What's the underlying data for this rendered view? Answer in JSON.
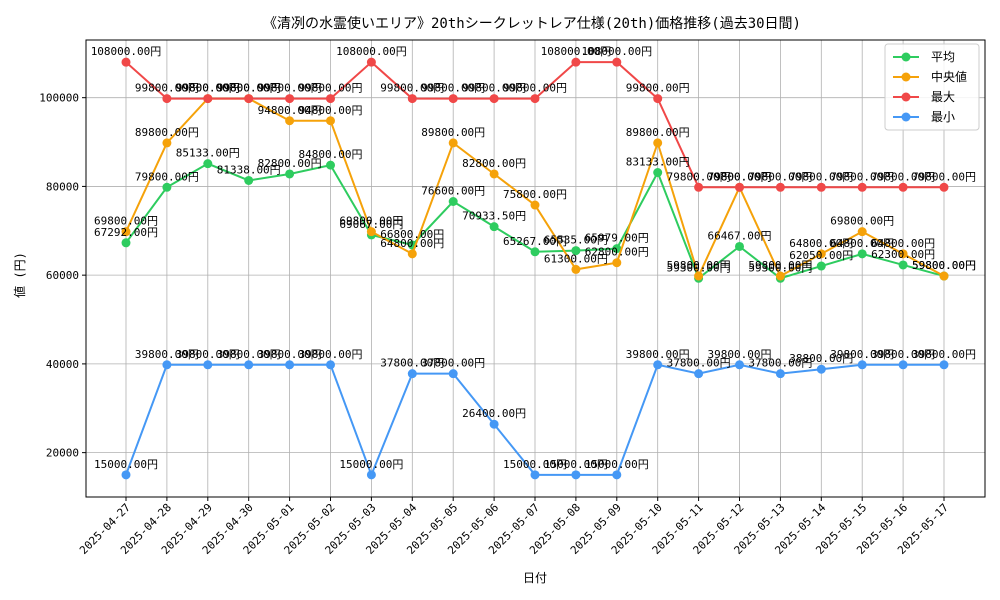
{
  "chart_data": {
    "type": "line",
    "title": "《清冽の水霊使いエリア》20thシークレットレア仕様(20th)価格推移(過去30日間)",
    "xlabel": "日付",
    "ylabel": "値 (円)",
    "ylim": [
      10000,
      113000
    ],
    "yticks": [
      20000,
      40000,
      60000,
      80000,
      100000
    ],
    "grid": true,
    "legend_position": "top-right",
    "categories": [
      "2025-04-27",
      "2025-04-28",
      "2025-04-29",
      "2025-04-30",
      "2025-05-01",
      "2025-05-02",
      "2025-05-03",
      "2025-05-04",
      "2025-05-05",
      "2025-05-06",
      "2025-05-07",
      "2025-05-08",
      "2025-05-09",
      "2025-05-10",
      "2025-05-11",
      "2025-05-12",
      "2025-05-13",
      "2025-05-14",
      "2025-05-15",
      "2025-05-16",
      "2025-05-17"
    ],
    "series": [
      {
        "name": "平均",
        "color": "#2ecc5f",
        "values": [
          67292,
          79800,
          85133,
          81338,
          82800,
          84800,
          69067,
          66800,
          76600,
          70933.5,
          65267,
          65535,
          65979,
          83133,
          59300,
          66467,
          59300,
          62050,
          64800,
          62300,
          59800
        ],
        "labels": [
          "67292.00円",
          "79800.00円",
          "85133.00円",
          "81338.00円",
          "82800.00円",
          "84800.00円",
          "69067.00円",
          "66800.00円",
          "76600.00円",
          "70933.50円",
          "65267.00円",
          "65535.00円",
          "65979.00円",
          "83133.00円",
          "59300.00円",
          "66467.00円",
          "59300.00円",
          "62050.00円",
          "64800.00円",
          "62300.00円",
          "59800.00円"
        ]
      },
      {
        "name": "中央値",
        "color": "#f5a20a",
        "values": [
          69800,
          89800,
          99800,
          99800,
          94800,
          94800,
          69800,
          64800,
          89800,
          82800,
          75800,
          61300,
          62800,
          89800,
          59800,
          79800,
          59800,
          64800,
          69800,
          64800,
          59800
        ],
        "labels": [
          "69800.00円",
          "89800.00円",
          "99800.00円",
          "99800.00円",
          "94800.00円",
          "94800.00円",
          "69800.00円",
          "64800.00円",
          "89800.00円",
          "82800.00円",
          "75800.00円",
          "61300.00円",
          "62800.00円",
          "89800.00円",
          "59800.00円",
          "79800.00円",
          "59800.00円",
          "64800.00円",
          "69800.00円",
          "64800.00円",
          "59800.00円"
        ]
      },
      {
        "name": "最大",
        "color": "#f04848",
        "values": [
          108000,
          99800,
          99800,
          99800,
          99800,
          99800,
          108000,
          99800,
          99800,
          99800,
          99800,
          108000,
          108000,
          99800,
          79800,
          79800,
          79800,
          79800,
          79800,
          79800,
          79800
        ],
        "labels": [
          "108000.00円",
          "99800.00円",
          "99800.00円",
          "99800.00円",
          "99800.00円",
          "99800.00円",
          "108000.00円",
          "99800.00円",
          "99800.00円",
          "99800.00円",
          "99800.00円",
          "108000.00円",
          "108000.00円",
          "99800.00円",
          "79800.00円",
          "79800.00円",
          "79800.00円",
          "79800.00円",
          "79800.00円",
          "79800.00円",
          "79800.00円"
        ]
      },
      {
        "name": "最小",
        "color": "#4598f5",
        "values": [
          15000,
          39800,
          39800,
          39800,
          39800,
          39800,
          15000,
          37800,
          37800,
          26400,
          15000,
          15000,
          15000,
          39800,
          37800,
          39800,
          37800,
          38800,
          39800,
          39800,
          39800
        ],
        "labels": [
          "15000.00円",
          "39800.00円",
          "39800.00円",
          "39800.00円",
          "39800.00円",
          "39800.00円",
          "15000.00円",
          "37800.00円",
          "37800.00円",
          "26400.00円",
          "15000.00円",
          "15000.00円",
          "15000.00円",
          "39800.00円",
          "37800.00円",
          "39800.00円",
          "37800.00円",
          "38800.00円",
          "39800.00円",
          "39800.00円",
          "39800.00円"
        ]
      }
    ]
  }
}
